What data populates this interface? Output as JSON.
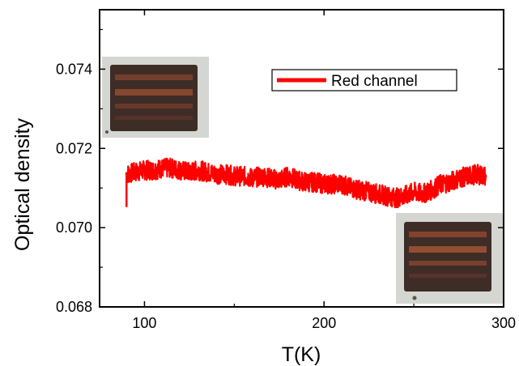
{
  "chart_data": {
    "type": "line",
    "xlabel": "T(K)",
    "ylabel": "Optical density",
    "xlim": [
      75,
      300
    ],
    "ylim": [
      0.068,
      0.0755
    ],
    "x_ticks": [
      100,
      200,
      300
    ],
    "x_tick_labels": [
      "100",
      "200",
      "300"
    ],
    "y_ticks": [
      0.068,
      0.07,
      0.072,
      0.074
    ],
    "y_tick_labels": [
      "0.068",
      "0.070",
      "0.072",
      "0.074"
    ],
    "grid": false,
    "legend": {
      "position": "top-right",
      "entries": [
        "Red channel"
      ]
    },
    "series": [
      {
        "name": "Red channel",
        "color": "#ff0000",
        "x": [
          90,
          95,
          100,
          105,
          110,
          115,
          120,
          125,
          130,
          135,
          140,
          145,
          150,
          155,
          160,
          165,
          170,
          175,
          180,
          185,
          190,
          195,
          200,
          205,
          210,
          215,
          220,
          225,
          230,
          235,
          240,
          245,
          250,
          255,
          260,
          265,
          270,
          275,
          280,
          285,
          290
        ],
        "y": [
          0.07135,
          0.0714,
          0.07145,
          0.07145,
          0.0715,
          0.0715,
          0.07145,
          0.0714,
          0.07145,
          0.0714,
          0.07135,
          0.07135,
          0.0713,
          0.0713,
          0.07125,
          0.0713,
          0.07125,
          0.0712,
          0.0713,
          0.0712,
          0.07115,
          0.07115,
          0.0711,
          0.0711,
          0.0711,
          0.071,
          0.07095,
          0.0709,
          0.07085,
          0.0708,
          0.07075,
          0.0708,
          0.0709,
          0.07085,
          0.07095,
          0.0711,
          0.07115,
          0.07125,
          0.0713,
          0.07135,
          0.0713
        ]
      }
    ]
  },
  "insets": [
    {
      "name": "inset-top-left",
      "description_colors": {
        "background": "#cfd2cc",
        "crystal": "#4a3328",
        "stripe": "#8a4a2e"
      }
    },
    {
      "name": "inset-bottom-right",
      "description_colors": {
        "background": "#cfd2cc",
        "crystal": "#4a3328",
        "stripe": "#9a5232"
      }
    }
  ]
}
